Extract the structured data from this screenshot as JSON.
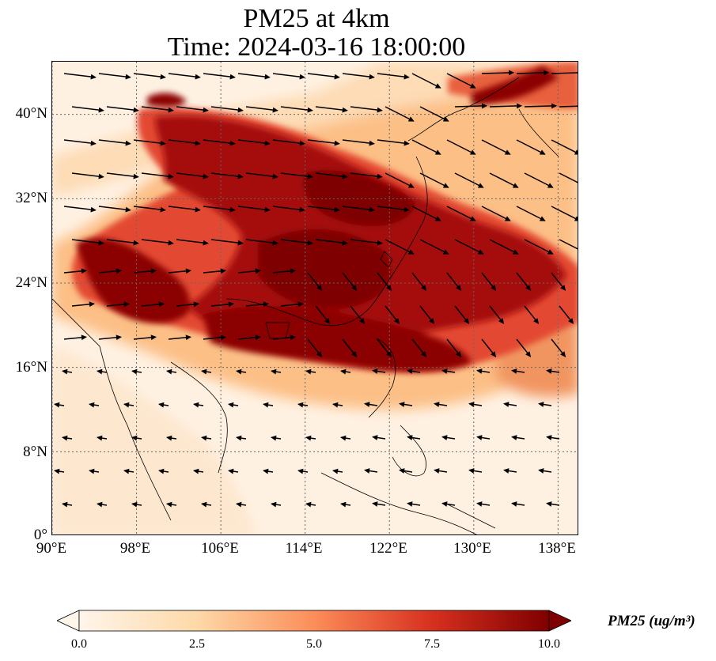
{
  "title": {
    "line1": "PM25 at 4km",
    "line2": "Time: 2024-03-16 18:00:00"
  },
  "map": {
    "lat_ticks": [
      {
        "label": "40°N",
        "value": 40
      },
      {
        "label": "32°N",
        "value": 32
      },
      {
        "label": "24°N",
        "value": 24
      },
      {
        "label": "16°N",
        "value": 16
      },
      {
        "label": "8°N",
        "value": 8
      },
      {
        "label": "0°",
        "value": 0
      }
    ],
    "lon_ticks": [
      {
        "label": "90°E",
        "value": 90
      },
      {
        "label": "98°E",
        "value": 98
      },
      {
        "label": "106°E",
        "value": 106
      },
      {
        "label": "114°E",
        "value": 114
      },
      {
        "label": "122°E",
        "value": 122
      },
      {
        "label": "130°E",
        "value": 130
      },
      {
        "label": "138°E",
        "value": 138
      }
    ],
    "lon_range": [
      90,
      140
    ],
    "lat_range": [
      0,
      45
    ],
    "gridlines": "dotted"
  },
  "colorbar": {
    "label": "PM25 (ug/m³)",
    "ticks": [
      "0.0",
      "2.5",
      "5.0",
      "7.5",
      "10.0"
    ],
    "range": [
      0,
      10
    ],
    "colors": [
      "#fff5eb",
      "#fdd9a8",
      "#fc8d59",
      "#d7301f",
      "#7f0000"
    ]
  }
}
